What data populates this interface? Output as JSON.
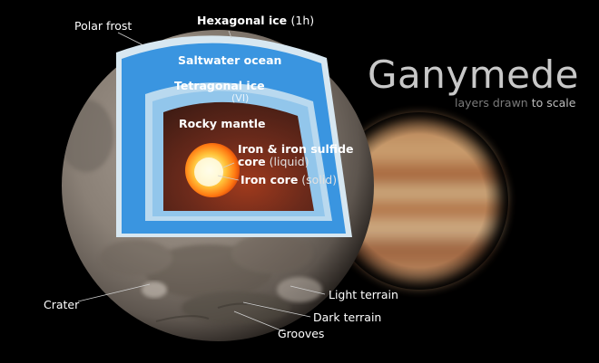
{
  "title": "Ganymede",
  "subtitle": {
    "part1": "layers drawn",
    "part2": "to scale"
  },
  "layers": {
    "hexagonal_ice": "Hexagonal ice",
    "hexagonal_ice_note": "(1h)",
    "saltwater_ocean": "Saltwater ocean",
    "tetragonal_ice": "Tetragonal ice",
    "tetragonal_ice_note": "(VI)",
    "rocky_mantle": "Rocky mantle",
    "outer_core_line1": "Iron & iron sulfide",
    "outer_core_line2": "core",
    "outer_core_note": "(liquid)",
    "inner_core": "Iron core",
    "inner_core_note": "(solid)"
  },
  "surface": {
    "polar_frost": "Polar frost",
    "crater": "Crater",
    "light_terrain": "Light terrain",
    "dark_terrain": "Dark terrain",
    "grooves": "Grooves"
  },
  "colors": {
    "ice_blue": "#2f8ad6",
    "ocean_blue": "#3d9be4",
    "pale_ice": "#cfe6f6",
    "mantle": "#5a2a1e",
    "core_orange": "#ff8a1c",
    "surface_gray": "#8f857b"
  }
}
